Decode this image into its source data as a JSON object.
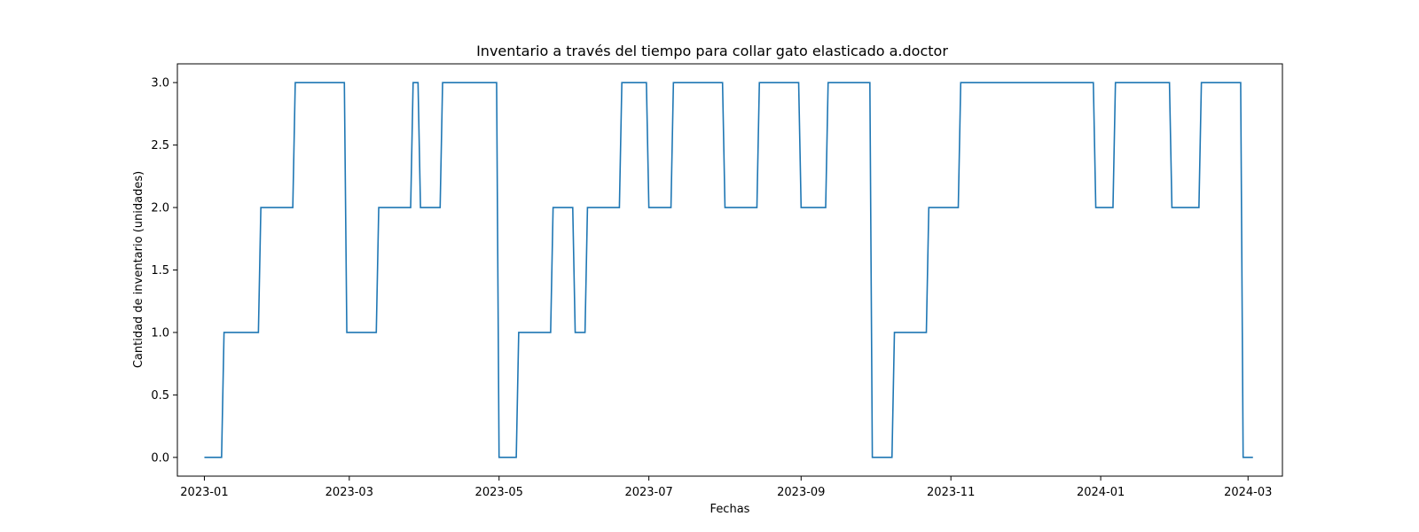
{
  "chart_data": {
    "type": "line",
    "title": "Inventario a través del tiempo para collar gato elasticado a.doctor",
    "xlabel": "Fechas",
    "ylabel": "Cantidad de inventario (unidades)",
    "xlim": [
      "2022-12-21",
      "2024-03-15"
    ],
    "ylim": [
      -0.15,
      3.15
    ],
    "x_ticks": [
      "2023-01",
      "2023-03",
      "2023-05",
      "2023-07",
      "2023-09",
      "2023-11",
      "2024-01",
      "2024-03"
    ],
    "y_ticks": [
      "0.0",
      "0.5",
      "1.0",
      "1.5",
      "2.0",
      "2.5",
      "3.0"
    ],
    "grid": false,
    "legend": "none",
    "series_color": "#1f77b4",
    "series": [
      {
        "x": [
          "2023-01-01",
          "2023-01-08",
          "2023-01-09",
          "2023-01-23",
          "2023-01-24",
          "2023-02-06",
          "2023-02-07",
          "2023-02-27",
          "2023-02-28",
          "2023-03-12",
          "2023-03-13",
          "2023-03-26",
          "2023-03-27",
          "2023-03-29",
          "2023-03-30",
          "2023-04-07",
          "2023-04-08",
          "2023-04-30",
          "2023-05-01",
          "2023-05-08",
          "2023-05-09",
          "2023-05-22",
          "2023-05-23",
          "2023-05-31",
          "2023-06-01",
          "2023-06-05",
          "2023-06-06",
          "2023-06-19",
          "2023-06-20",
          "2023-06-30",
          "2023-07-01",
          "2023-07-10",
          "2023-07-11",
          "2023-07-31",
          "2023-08-01",
          "2023-08-14",
          "2023-08-15",
          "2023-08-31",
          "2023-09-01",
          "2023-09-11",
          "2023-09-12",
          "2023-09-29",
          "2023-09-30",
          "2023-10-08",
          "2023-10-09",
          "2023-10-22",
          "2023-10-23",
          "2023-11-04",
          "2023-11-05",
          "2023-12-29",
          "2023-12-30",
          "2024-01-06",
          "2024-01-07",
          "2024-01-29",
          "2024-01-30",
          "2024-02-10",
          "2024-02-11",
          "2024-02-27",
          "2024-02-28",
          "2024-03-03"
        ],
        "values": [
          0,
          0,
          1,
          1,
          2,
          2,
          3,
          3,
          1,
          1,
          2,
          2,
          3,
          3,
          2,
          2,
          3,
          3,
          0,
          0,
          1,
          1,
          2,
          2,
          1,
          1,
          2,
          2,
          3,
          3,
          2,
          2,
          3,
          3,
          2,
          2,
          3,
          3,
          2,
          2,
          3,
          3,
          0,
          0,
          1,
          1,
          2,
          2,
          3,
          3,
          2,
          2,
          3,
          3,
          2,
          2,
          3,
          3,
          0,
          0
        ]
      }
    ]
  }
}
